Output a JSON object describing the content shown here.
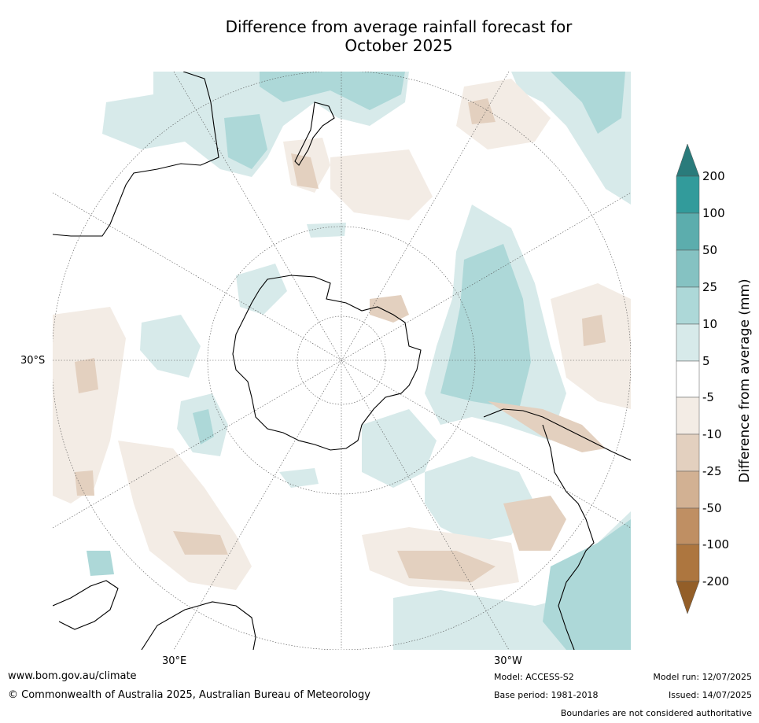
{
  "title": {
    "line1": "Difference from average rainfall forecast for",
    "line2": "October 2025"
  },
  "map_labels": {
    "lat_30s": "30°S",
    "lon_30e": "30°E",
    "lon_30w": "30°W"
  },
  "colorbar": {
    "title": "Difference from average (mm)",
    "labels": [
      "200",
      "100",
      "50",
      "25",
      "10",
      "5",
      "-5",
      "-10",
      "-25",
      "-50",
      "-100",
      "-200"
    ],
    "colors": [
      "#2a7b7b",
      "#329b9b",
      "#5cadad",
      "#85c2c2",
      "#add8d8",
      "#d7eaea",
      "#ffffff",
      "#f3ece5",
      "#e3d0bf",
      "#d2b193",
      "#bf8f63",
      "#ad763f",
      "#935e28"
    ]
  },
  "footer": {
    "website": "www.bom.gov.au/climate",
    "copyright": "© Commonwealth of Australia 2025, Australian Bureau of Meteorology",
    "model": "Model: ACCESS-S2",
    "base_period": "Base period: 1981-2018",
    "model_run": "Model run: 12/07/2025",
    "issued": "Issued: 14/07/2025",
    "disclaimer": "Boundaries are not considered authoritative"
  }
}
